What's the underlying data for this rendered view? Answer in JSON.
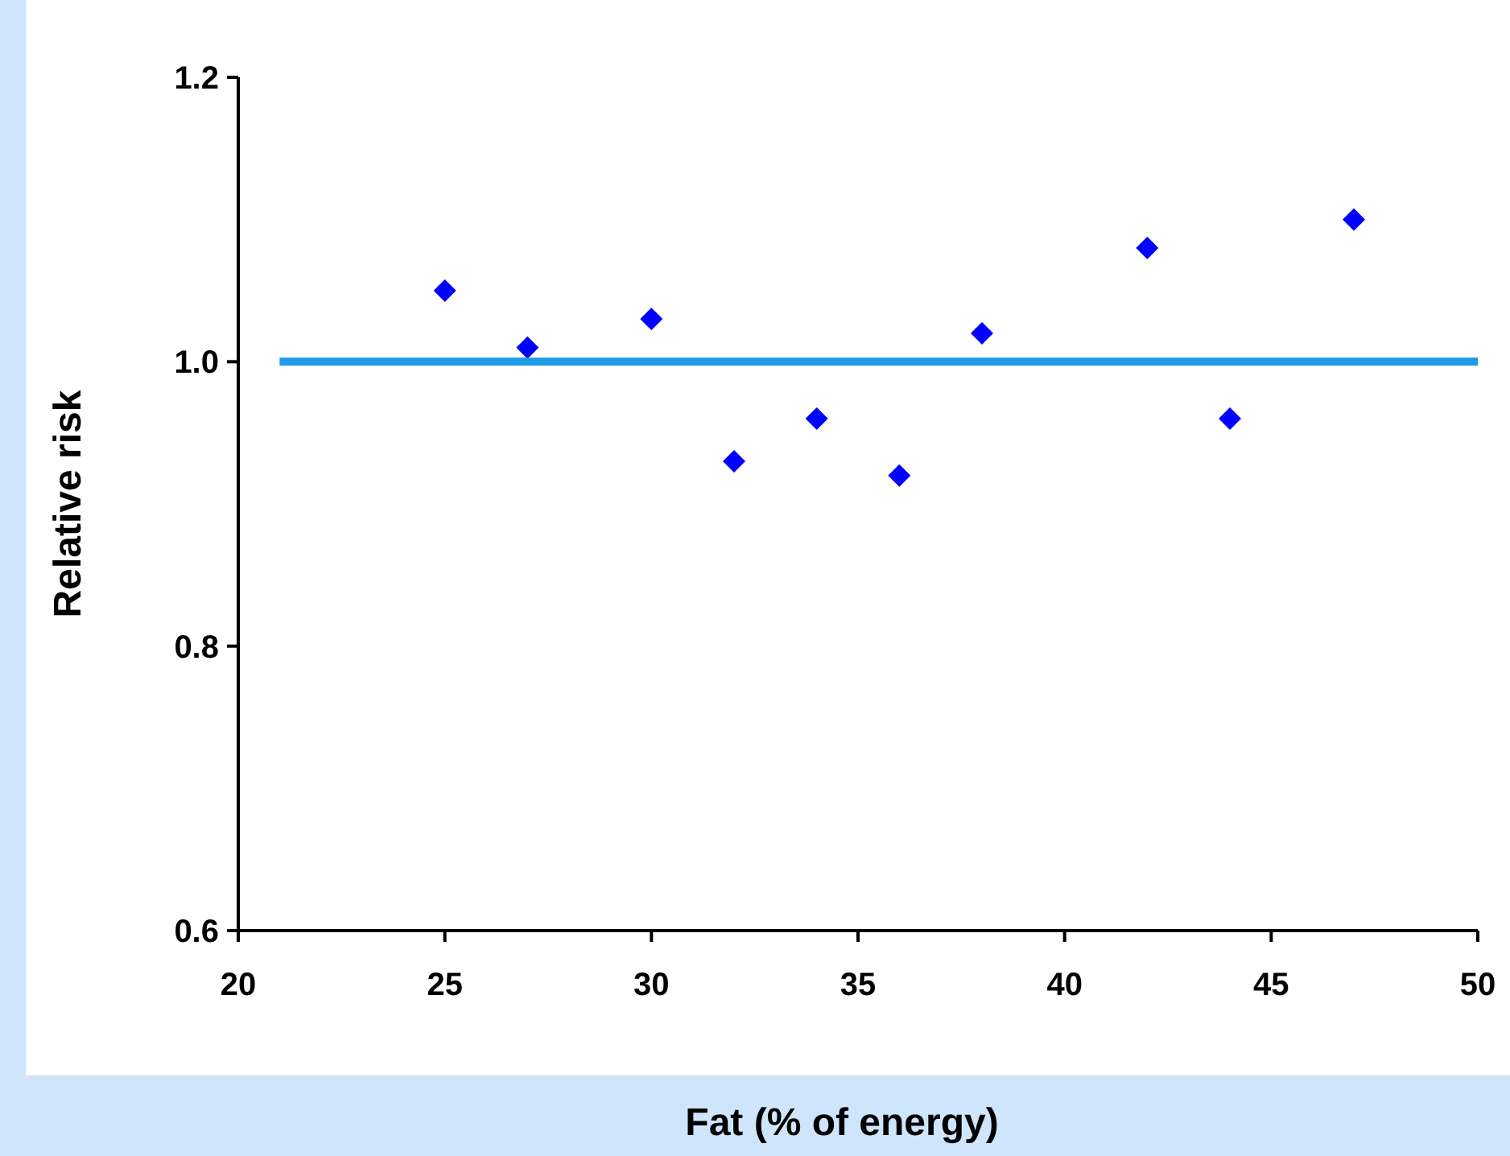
{
  "chart_data": {
    "type": "scatter",
    "xlabel": "Fat (% of energy)",
    "ylabel": "Relative risk",
    "x": [
      25,
      27,
      30,
      32,
      34,
      36,
      38,
      42,
      44,
      47
    ],
    "series": [
      {
        "color": "#0000ff",
        "marker": "diamond",
        "values": [
          1.05,
          1.01,
          1.03,
          0.93,
          0.96,
          0.92,
          1.02,
          1.08,
          0.96,
          1.1
        ]
      },
      {
        "type": "line",
        "color": "#1e9be6",
        "marker": "none",
        "line_style": "solid",
        "x": [
          21,
          50
        ],
        "values": [
          1.0,
          1.0
        ]
      }
    ],
    "xlim": [
      20,
      50
    ],
    "xticks": [
      20,
      25,
      30,
      35,
      40,
      45,
      50
    ],
    "ylim": [
      0.6,
      1.2
    ],
    "yticks": [
      0.6,
      0.8,
      {
        "value": 1.0,
        "label": "1.0"
      },
      1.2
    ],
    "grid": false
  }
}
